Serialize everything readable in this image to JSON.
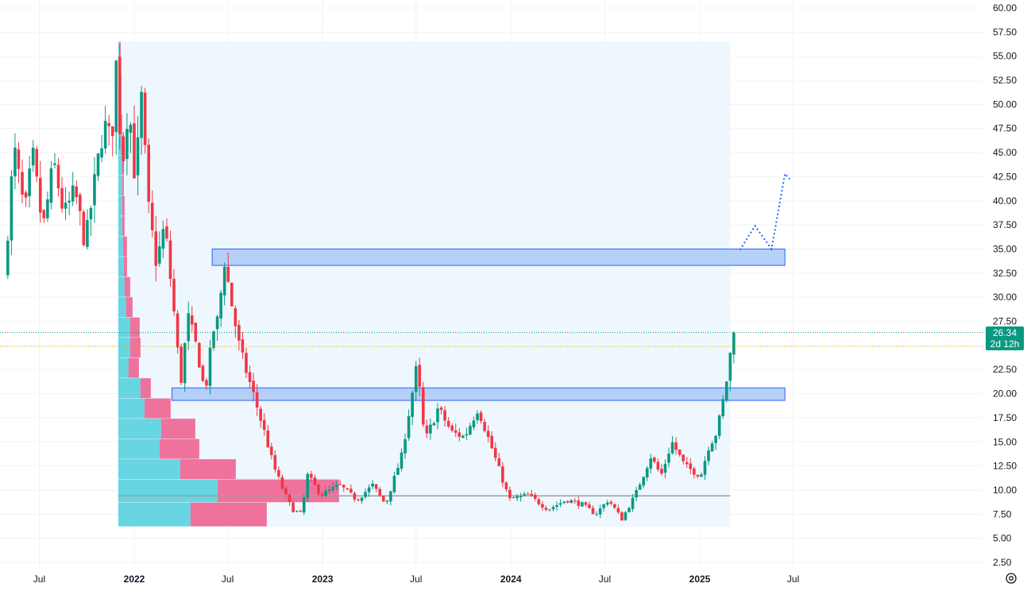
{
  "chart_data": {
    "type": "candlestick",
    "title": "",
    "xlabel": "",
    "ylabel": "",
    "ylim": [
      2.5,
      60
    ],
    "y_ticks": [
      "60.00",
      "57.50",
      "55.00",
      "52.50",
      "50.00",
      "47.50",
      "45.00",
      "42.50",
      "40.00",
      "37.50",
      "35.00",
      "32.50",
      "30.00",
      "27.50",
      "25.00",
      "22.50",
      "20.00",
      "17.50",
      "15.00",
      "12.50",
      "10.00",
      "7.50",
      "5.00",
      "2.50"
    ],
    "x_ticks": [
      {
        "label": "Jul",
        "date": "2021-07-01",
        "year": false
      },
      {
        "label": "2022",
        "date": "2022-01-01",
        "year": true
      },
      {
        "label": "Jul",
        "date": "2022-07-01",
        "year": false
      },
      {
        "label": "2023",
        "date": "2023-01-01",
        "year": true
      },
      {
        "label": "Jul",
        "date": "2023-07-01",
        "year": false
      },
      {
        "label": "2024",
        "date": "2024-01-01",
        "year": true
      },
      {
        "label": "Jul",
        "date": "2024-07-01",
        "year": false
      },
      {
        "label": "2025",
        "date": "2025-01-01",
        "year": true
      },
      {
        "label": "Jul",
        "date": "2025-07-01",
        "year": false
      }
    ],
    "last_price": "26.34",
    "countdown": "2d 12h",
    "colors": {
      "up": "#089981",
      "down": "#f23645",
      "zone_fill": "#a9c9f7",
      "zone_border": "#2962ff",
      "range_bg": "#eef7fd",
      "vp_up": "#5fd3e0",
      "vp_down": "#ee6a98",
      "poc": "#9e9e9e",
      "projection": "#2962ff"
    },
    "zones": [
      {
        "name": "resistance-zone",
        "top": 35.0,
        "bottom": 33.3,
        "start": "2022-06-01",
        "end": "2025-06-15"
      },
      {
        "name": "support-zone",
        "top": 20.6,
        "bottom": 19.3,
        "start": "2022-03-15",
        "end": "2025-06-15"
      }
    ],
    "volume_profile_range": {
      "start": "2021-12-01",
      "end": "2025-03-01",
      "top": 56.5,
      "bottom": 6.2
    },
    "poc_price": 9.4,
    "volume_profile": [
      {
        "low": 6.2,
        "high": 8.7,
        "up": 91,
        "down": 96
      },
      {
        "low": 8.7,
        "high": 11.1,
        "up": 125,
        "down": 153
      },
      {
        "low": 11.1,
        "high": 13.2,
        "up": 78,
        "down": 70
      },
      {
        "low": 13.2,
        "high": 15.3,
        "up": 52,
        "down": 50
      },
      {
        "low": 15.3,
        "high": 17.4,
        "up": 54,
        "down": 43
      },
      {
        "low": 17.4,
        "high": 19.5,
        "up": 33,
        "down": 33
      },
      {
        "low": 19.5,
        "high": 21.6,
        "up": 28,
        "down": 13
      },
      {
        "low": 21.6,
        "high": 23.7,
        "up": 13,
        "down": 13
      },
      {
        "low": 23.7,
        "high": 25.8,
        "up": 15,
        "down": 13
      },
      {
        "low": 25.8,
        "high": 27.9,
        "up": 15,
        "down": 12
      },
      {
        "low": 27.9,
        "high": 30.0,
        "up": 10,
        "down": 8
      },
      {
        "low": 30.0,
        "high": 32.1,
        "up": 8,
        "down": 7
      },
      {
        "low": 32.1,
        "high": 34.2,
        "up": 7,
        "down": 4
      },
      {
        "low": 34.2,
        "high": 36.3,
        "up": 6,
        "down": 5
      },
      {
        "low": 36.3,
        "high": 38.4,
        "up": 5,
        "down": 3
      },
      {
        "low": 38.4,
        "high": 40.5,
        "up": 5,
        "down": 3
      },
      {
        "low": 40.5,
        "high": 42.6,
        "up": 5,
        "down": 2
      },
      {
        "low": 42.6,
        "high": 44.7,
        "up": 5,
        "down": 2
      },
      {
        "low": 44.7,
        "high": 46.8,
        "up": 4,
        "down": 2
      },
      {
        "low": 46.8,
        "high": 48.9,
        "up": 3,
        "down": 2
      },
      {
        "low": 48.9,
        "high": 51.0,
        "up": 3,
        "down": 1
      },
      {
        "low": 51.0,
        "high": 53.1,
        "up": 3,
        "down": 1
      },
      {
        "low": 53.1,
        "high": 55.2,
        "up": 2,
        "down": 1
      },
      {
        "low": 55.2,
        "high": 56.5,
        "up": 2,
        "down": 1
      }
    ],
    "price_path": [
      [
        "2021-05-01",
        32.0
      ],
      [
        "2021-05-20",
        45.5
      ],
      [
        "2021-06-10",
        38.5
      ],
      [
        "2021-06-25",
        44.8
      ],
      [
        "2021-07-15",
        37.0
      ],
      [
        "2021-08-05",
        44.0
      ],
      [
        "2021-08-25",
        38.5
      ],
      [
        "2021-09-15",
        41.0
      ],
      [
        "2021-10-05",
        35.5
      ],
      [
        "2021-10-25",
        42.5
      ],
      [
        "2021-11-10",
        48.0
      ],
      [
        "2021-11-25",
        46.0
      ],
      [
        "2021-12-05",
        55.0
      ],
      [
        "2021-12-15",
        43.0
      ],
      [
        "2021-12-28",
        50.5
      ],
      [
        "2022-01-10",
        42.0
      ],
      [
        "2022-01-22",
        50.5
      ],
      [
        "2022-02-05",
        39.0
      ],
      [
        "2022-02-20",
        33.5
      ],
      [
        "2022-03-08",
        37.5
      ],
      [
        "2022-03-25",
        29.0
      ],
      [
        "2022-04-08",
        21.0
      ],
      [
        "2022-04-22",
        28.0
      ],
      [
        "2022-05-10",
        24.5
      ],
      [
        "2022-05-25",
        20.0
      ],
      [
        "2022-06-10",
        26.5
      ],
      [
        "2022-06-22",
        28.0
      ],
      [
        "2022-06-30",
        34.5
      ],
      [
        "2022-07-15",
        29.5
      ],
      [
        "2022-08-01",
        24.5
      ],
      [
        "2022-08-15",
        22.0
      ],
      [
        "2022-09-01",
        19.0
      ],
      [
        "2022-09-20",
        15.5
      ],
      [
        "2022-10-05",
        12.5
      ],
      [
        "2022-10-25",
        9.8
      ],
      [
        "2022-11-10",
        8.0
      ],
      [
        "2022-11-28",
        7.5
      ],
      [
        "2022-12-10",
        11.5
      ],
      [
        "2023-01-05",
        9.5
      ],
      [
        "2023-02-10",
        10.5
      ],
      [
        "2023-03-15",
        9.0
      ],
      [
        "2023-04-15",
        10.5
      ],
      [
        "2023-05-10",
        8.5
      ],
      [
        "2023-06-10",
        13.5
      ],
      [
        "2023-07-10",
        23.0
      ],
      [
        "2023-07-25",
        15.0
      ],
      [
        "2023-08-20",
        18.5
      ],
      [
        "2023-09-15",
        16.0
      ],
      [
        "2023-10-10",
        15.5
      ],
      [
        "2023-11-05",
        18.5
      ],
      [
        "2023-12-01",
        14.5
      ],
      [
        "2024-01-05",
        9.0
      ],
      [
        "2024-02-10",
        9.5
      ],
      [
        "2024-03-20",
        8.0
      ],
      [
        "2024-04-25",
        9.0
      ],
      [
        "2024-05-25",
        8.5
      ],
      [
        "2024-06-20",
        7.5
      ],
      [
        "2024-07-15",
        9.0
      ],
      [
        "2024-08-10",
        7.0
      ],
      [
        "2024-09-05",
        9.5
      ],
      [
        "2024-10-05",
        13.5
      ],
      [
        "2024-10-25",
        11.5
      ],
      [
        "2024-11-15",
        15.0
      ],
      [
        "2024-12-10",
        12.5
      ],
      [
        "2025-01-10",
        11.5
      ],
      [
        "2025-01-25",
        14.5
      ],
      [
        "2025-02-10",
        16.0
      ],
      [
        "2025-02-25",
        20.0
      ],
      [
        "2025-03-07",
        23.5
      ],
      [
        "2025-03-12",
        26.34
      ]
    ],
    "projection_path": [
      [
        "2025-03-20",
        34.9
      ],
      [
        "2025-04-18",
        37.4
      ],
      [
        "2025-05-20",
        35.0
      ],
      [
        "2025-06-15",
        42.8
      ],
      [
        "2025-06-25",
        42.2
      ]
    ]
  }
}
